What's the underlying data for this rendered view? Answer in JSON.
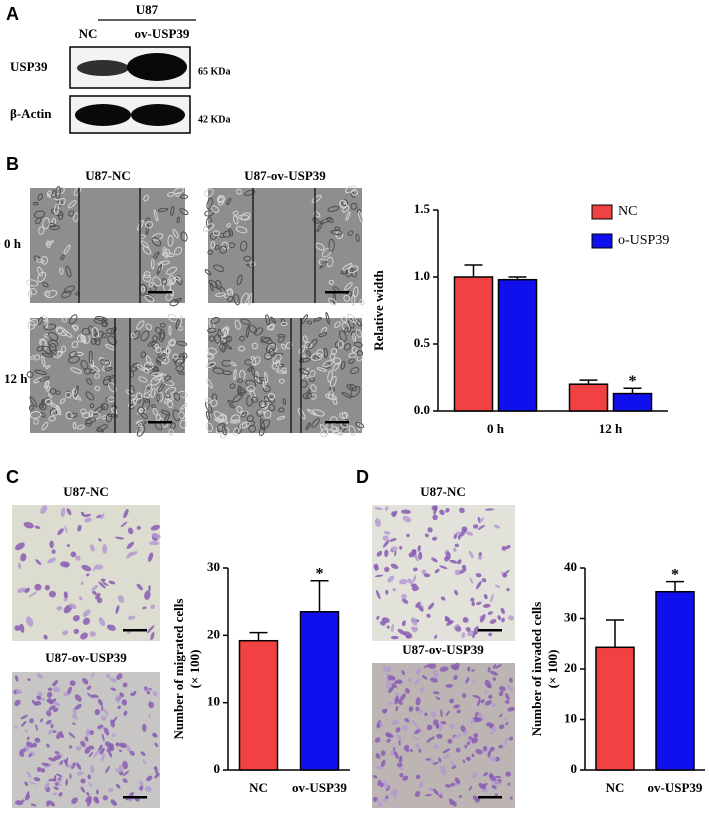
{
  "figure": {
    "panel_labels": [
      "A",
      "B",
      "C",
      "D"
    ],
    "blot": {
      "cell_line": "U87",
      "lanes": [
        "NC",
        "ov-USP39"
      ],
      "rows": [
        {
          "protein": "USP39",
          "size": "65 KDa"
        },
        {
          "protein": "β-Actin",
          "size": "42 KDa"
        }
      ]
    },
    "wound": {
      "columns": [
        "U87-NC",
        "U87-ov-USP39"
      ],
      "rows": [
        "0 h",
        "12 h"
      ]
    },
    "migration": {
      "images": [
        "U87-NC",
        "U87-ov-USP39"
      ]
    },
    "invasion": {
      "images": [
        "U87-NC",
        "U87-ov-USP39"
      ]
    }
  },
  "chart_data": [
    {
      "type": "bar",
      "ylabel": [
        "Relative width"
      ],
      "categories": [
        "0 h",
        "12 h"
      ],
      "series": [
        {
          "name": "NC",
          "color": "#f04242",
          "values": [
            1.0,
            0.2
          ],
          "errors": [
            0.09,
            0.03
          ]
        },
        {
          "name": "o-USP39",
          "color": "#1010ee",
          "values": [
            0.98,
            0.13
          ],
          "errors": [
            0.02,
            0.04
          ]
        }
      ],
      "ylim": [
        0,
        1.5
      ],
      "yticks": [
        {
          "value": 0,
          "label": "0.0"
        },
        {
          "value": 0.5,
          "label": "0.5"
        },
        {
          "value": 1,
          "label": "1.0"
        },
        {
          "value": 1.5,
          "label": "1.5"
        }
      ],
      "significance": "*",
      "legend": "upper right"
    },
    {
      "type": "bar",
      "ylabel": [
        "Number  of migrated cells",
        "(× 100)"
      ],
      "categories": [
        "NC",
        "ov-USP39"
      ],
      "values": [
        19.2,
        23.5
      ],
      "errors": [
        1.2,
        4.6
      ],
      "colors": [
        "#f04242",
        "#1010ee"
      ],
      "ylim": [
        0,
        30
      ],
      "yticks": [
        0,
        10,
        20,
        30
      ],
      "significance": "*"
    },
    {
      "type": "bar",
      "ylabel": [
        "Number of invaded cells",
        "(× 100)"
      ],
      "categories": [
        "NC",
        "ov-USP39"
      ],
      "values": [
        24.3,
        35.3
      ],
      "errors": [
        5.4,
        2.0
      ],
      "colors": [
        "#f04242",
        "#1010ee"
      ],
      "ylim": [
        0,
        40
      ],
      "yticks": [
        0,
        10,
        20,
        30,
        40
      ],
      "significance": "*"
    }
  ]
}
